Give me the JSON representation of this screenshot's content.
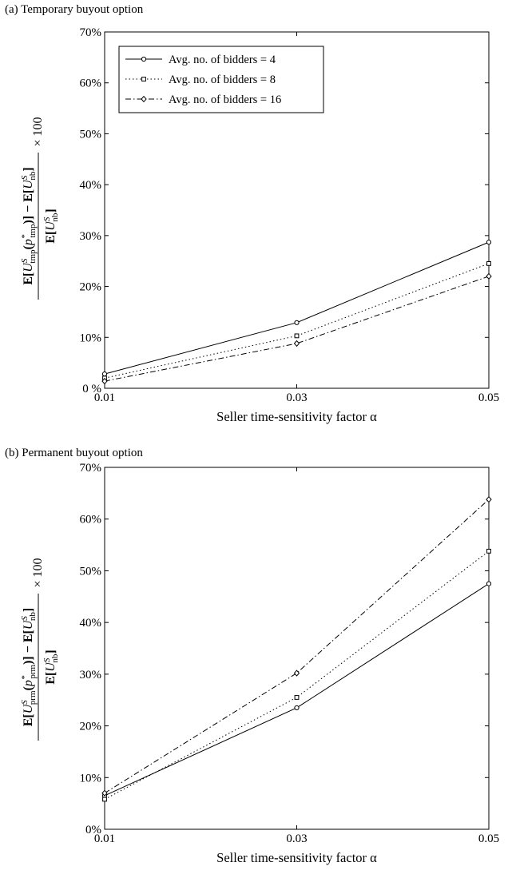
{
  "chart_data": [
    {
      "type": "line",
      "panel_title": "(a) Temporary buyout option",
      "xlabel": "Seller time-sensitivity factor α",
      "ylabel": "E[U^S_tmp(p*_tmp)] − E[U^S_nb] / E[U^S_nb] × 100",
      "x": [
        0.01,
        0.03,
        0.05
      ],
      "x_ticks": [
        "0.01",
        "0.03",
        "0.05"
      ],
      "y_ticks": [
        "0 %",
        "10%",
        "20%",
        "30%",
        "40%",
        "50%",
        "60%",
        "70%"
      ],
      "ylim": [
        0,
        70
      ],
      "legend_position": "top-left",
      "series": [
        {
          "name": "Avg. no. of bidders = 4",
          "values": [
            2.8,
            12.9,
            28.7
          ],
          "marker": "circle",
          "dash": "solid"
        },
        {
          "name": "Avg. no. of bidders = 8",
          "values": [
            2.0,
            10.3,
            24.5
          ],
          "marker": "square",
          "dash": "dotted"
        },
        {
          "name": "Avg. no. of bidders = 16",
          "values": [
            1.4,
            8.8,
            22.0
          ],
          "marker": "diamond",
          "dash": "dashdot"
        }
      ]
    },
    {
      "type": "line",
      "panel_title": "(b) Permanent buyout option",
      "xlabel": "Seller time-sensitivity factor α",
      "ylabel": "E[U^S_prm(p*_prm)] − E[U^S_nb] / E[U^S_nb] × 100",
      "x": [
        0.01,
        0.03,
        0.05
      ],
      "x_ticks": [
        "0.01",
        "0.03",
        "0.05"
      ],
      "y_ticks": [
        "0%",
        "10%",
        "20%",
        "30%",
        "40%",
        "50%",
        "60%",
        "70%"
      ],
      "ylim": [
        0,
        70
      ],
      "legend_position": "none",
      "series": [
        {
          "values": [
            6.5,
            23.5,
            47.5
          ],
          "marker": "circle",
          "dash": "solid"
        },
        {
          "values": [
            5.8,
            25.5,
            53.8
          ],
          "marker": "square",
          "dash": "dotted"
        },
        {
          "values": [
            7.0,
            30.2,
            63.8
          ],
          "marker": "diamond",
          "dash": "dashdot"
        }
      ]
    }
  ]
}
